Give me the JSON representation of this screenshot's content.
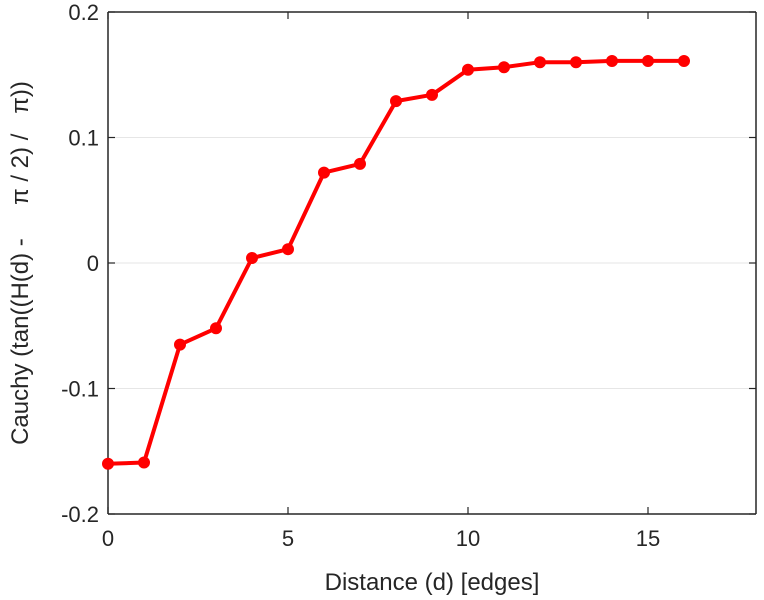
{
  "chart_data": {
    "type": "line",
    "title": "",
    "xlabel": "Distance (d) [edges]",
    "ylabel": "Cauchy (tan((H(d) -     π / 2) /   π))",
    "xlim": [
      0,
      18
    ],
    "ylim": [
      -0.2,
      0.2
    ],
    "xticks": [
      0,
      5,
      10,
      15
    ],
    "yticks": [
      -0.2,
      -0.1,
      0,
      0.1,
      0.2
    ],
    "xtick_labels": [
      "0",
      "5",
      "10",
      "15"
    ],
    "ytick_labels": [
      "-0.2",
      "-0.1",
      "0",
      "0.1",
      "0.2"
    ],
    "grid": "horizontal",
    "series": [
      {
        "color": "#ff0000",
        "marker": "circle",
        "x": [
          0,
          1,
          2,
          3,
          4,
          5,
          6,
          7,
          8,
          9,
          10,
          11,
          12,
          13,
          14,
          15,
          16
        ],
        "values": [
          -0.16,
          -0.159,
          -0.065,
          -0.052,
          0.004,
          0.011,
          0.072,
          0.079,
          0.129,
          0.134,
          0.154,
          0.156,
          0.16,
          0.16,
          0.161,
          0.161,
          0.161
        ]
      }
    ]
  }
}
